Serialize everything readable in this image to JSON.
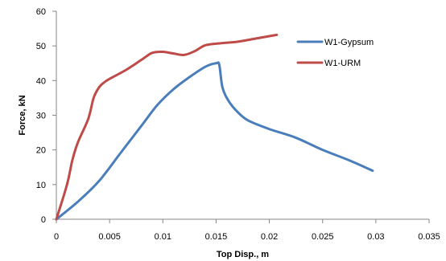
{
  "chart_data": {
    "type": "line",
    "title": "",
    "xlabel": "Top Disp., m",
    "ylabel": "Force, kN",
    "xlim": [
      0,
      0.035
    ],
    "ylim": [
      0,
      60
    ],
    "x_ticks": [
      0,
      0.005,
      0.01,
      0.015,
      0.02,
      0.025,
      0.03,
      0.035
    ],
    "x_tick_labels": [
      "0",
      "0.005",
      "0.01",
      "0.015",
      "0.02",
      "0.025",
      "0.03",
      "0.035"
    ],
    "y_ticks": [
      0,
      10,
      20,
      30,
      40,
      50,
      60
    ],
    "y_tick_labels": [
      "0",
      "10",
      "20",
      "30",
      "40",
      "50",
      "60"
    ],
    "grid": false,
    "legend_position": "right",
    "series": [
      {
        "name": "W1-Gypsum",
        "color": "#4A7EBB",
        "points": [
          [
            0,
            0
          ],
          [
            0.002,
            5
          ],
          [
            0.004,
            11
          ],
          [
            0.006,
            19
          ],
          [
            0.008,
            27
          ],
          [
            0.0095,
            33
          ],
          [
            0.011,
            37.5
          ],
          [
            0.0125,
            41
          ],
          [
            0.014,
            44
          ],
          [
            0.015,
            45
          ],
          [
            0.0153,
            44.5
          ],
          [
            0.0156,
            38
          ],
          [
            0.0162,
            34
          ],
          [
            0.017,
            31
          ],
          [
            0.018,
            28.5
          ],
          [
            0.02,
            26
          ],
          [
            0.0225,
            23.5
          ],
          [
            0.025,
            20
          ],
          [
            0.0275,
            17
          ],
          [
            0.0297,
            14
          ]
        ]
      },
      {
        "name": "W1-URM",
        "color": "#BE4B48",
        "points": [
          [
            0,
            0
          ],
          [
            0.001,
            10
          ],
          [
            0.0015,
            17
          ],
          [
            0.002,
            22
          ],
          [
            0.003,
            29
          ],
          [
            0.0035,
            35
          ],
          [
            0.004,
            38
          ],
          [
            0.0045,
            39.5
          ],
          [
            0.005,
            40.5
          ],
          [
            0.0065,
            43
          ],
          [
            0.008,
            46
          ],
          [
            0.009,
            48
          ],
          [
            0.01,
            48.3
          ],
          [
            0.011,
            47.8
          ],
          [
            0.012,
            47.4
          ],
          [
            0.013,
            48.5
          ],
          [
            0.014,
            50.2
          ],
          [
            0.0155,
            50.8
          ],
          [
            0.017,
            51.2
          ],
          [
            0.0185,
            52
          ],
          [
            0.0207,
            53.2
          ]
        ]
      }
    ]
  }
}
